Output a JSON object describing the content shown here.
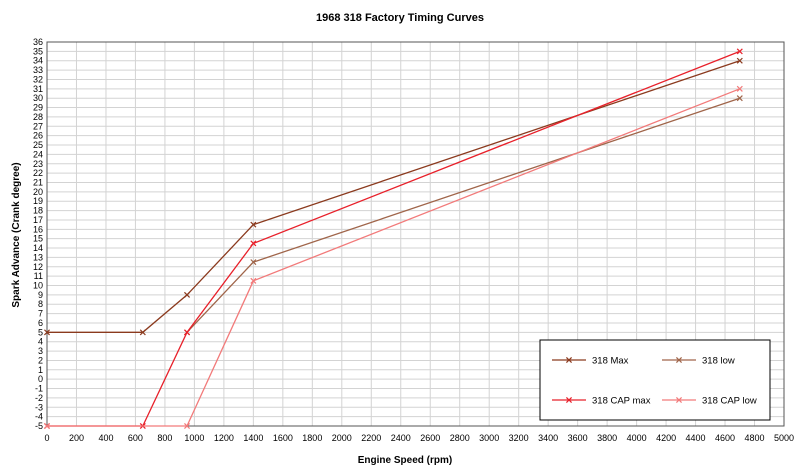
{
  "chart_data": {
    "type": "line",
    "title": "1968 318 Factory Timing Curves",
    "xlabel": "Engine Speed (rpm)",
    "ylabel": "Spark Advance (Crank degree)",
    "xlim": [
      0,
      5000
    ],
    "ylim": [
      -5,
      36
    ],
    "xticks": [
      0,
      200,
      400,
      600,
      800,
      1000,
      1200,
      1400,
      1600,
      1800,
      2000,
      2200,
      2400,
      2600,
      2800,
      3000,
      3200,
      3400,
      3600,
      3800,
      4000,
      4200,
      4400,
      4600,
      4800,
      5000
    ],
    "yticks": [
      -5,
      -4,
      -3,
      -2,
      -1,
      0,
      1,
      2,
      3,
      4,
      5,
      6,
      7,
      8,
      9,
      10,
      11,
      12,
      13,
      14,
      15,
      16,
      17,
      18,
      19,
      20,
      21,
      22,
      23,
      24,
      25,
      26,
      27,
      28,
      29,
      30,
      31,
      32,
      33,
      34,
      35,
      36
    ],
    "grid": true,
    "legend_position": "bottom-right",
    "series": [
      {
        "name": "318 Max",
        "color": "#8b3a1e",
        "marker": "x",
        "x": [
          0,
          650,
          950,
          1400,
          4700
        ],
        "y": [
          5,
          5,
          9,
          16.5,
          34
        ]
      },
      {
        "name": "318 low",
        "color": "#a0654a",
        "marker": "x",
        "x": [
          950,
          1400,
          4700
        ],
        "y": [
          5,
          12.5,
          30
        ]
      },
      {
        "name": "318 CAP max",
        "color": "#e8202a",
        "marker": "x",
        "x": [
          0,
          650,
          950,
          1400,
          4700
        ],
        "y": [
          -5,
          -5,
          5,
          14.5,
          35
        ]
      },
      {
        "name": "318 CAP low",
        "color": "#f27a7a",
        "marker": "x",
        "x": [
          0,
          950,
          1400,
          4700
        ],
        "y": [
          -5,
          -5,
          10.5,
          31
        ]
      }
    ]
  }
}
